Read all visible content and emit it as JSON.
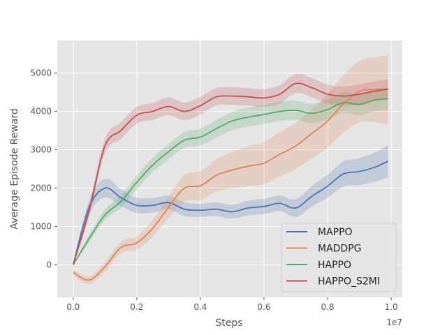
{
  "chart_data": {
    "type": "line",
    "title": "",
    "xlabel": "Steps",
    "ylabel": "Average Episode Reward",
    "x_offset_label": "1e7",
    "xlim": [
      -0.05,
      1.035
    ],
    "ylim": [
      -850,
      5850
    ],
    "x_ticks": [
      0.0,
      0.2,
      0.4,
      0.6,
      0.8,
      1.0
    ],
    "x_tick_labels": [
      "0.0",
      "0.2",
      "0.4",
      "0.6",
      "0.8",
      "1.0"
    ],
    "y_ticks": [
      0,
      1000,
      2000,
      3000,
      4000,
      5000
    ],
    "y_tick_labels": [
      "0",
      "1000",
      "2000",
      "3000",
      "4000",
      "5000"
    ],
    "grid": true,
    "legend_position": "lower-right",
    "x": [
      0.0,
      0.05,
      0.1,
      0.15,
      0.2,
      0.25,
      0.3,
      0.35,
      0.4,
      0.45,
      0.5,
      0.55,
      0.6,
      0.65,
      0.7,
      0.75,
      0.8,
      0.85,
      0.9,
      0.95,
      0.99
    ],
    "series": [
      {
        "name": "MAPPO",
        "color": "#4c72b0",
        "values": [
          0,
          1500,
          2000,
          1750,
          1550,
          1550,
          1620,
          1450,
          1420,
          1450,
          1380,
          1480,
          1520,
          1600,
          1480,
          1780,
          2050,
          2370,
          2430,
          2550,
          2700
        ],
        "band": [
          0,
          180,
          250,
          220,
          200,
          190,
          180,
          180,
          170,
          180,
          180,
          190,
          200,
          200,
          230,
          270,
          300,
          330,
          350,
          380,
          430
        ]
      },
      {
        "name": "MADDPG",
        "color": "#dd8452",
        "values": [
          -200,
          -400,
          -50,
          450,
          570,
          950,
          1500,
          2000,
          2060,
          2330,
          2470,
          2570,
          2650,
          2880,
          3100,
          3420,
          3750,
          4200,
          4520,
          4570,
          4570
        ],
        "band": [
          80,
          100,
          120,
          150,
          180,
          220,
          280,
          350,
          380,
          420,
          470,
          520,
          550,
          580,
          600,
          650,
          700,
          750,
          800,
          850,
          900
        ]
      },
      {
        "name": "HAPPO",
        "color": "#55a868",
        "values": [
          0,
          680,
          1300,
          1650,
          2150,
          2600,
          2950,
          3250,
          3330,
          3550,
          3750,
          3850,
          3920,
          4000,
          4030,
          3950,
          4050,
          4230,
          4180,
          4300,
          4330
        ],
        "band": [
          0,
          100,
          140,
          160,
          180,
          190,
          200,
          210,
          220,
          230,
          240,
          250,
          250,
          250,
          250,
          250,
          260,
          270,
          280,
          290,
          300
        ]
      },
      {
        "name": "HAPPO_S2MI",
        "color": "#c44e52",
        "values": [
          0,
          1400,
          3100,
          3500,
          3900,
          4000,
          4130,
          4000,
          4150,
          4380,
          4400,
          4380,
          4350,
          4450,
          4730,
          4620,
          4450,
          4400,
          4450,
          4530,
          4580
        ],
        "band": [
          0,
          160,
          200,
          220,
          220,
          220,
          230,
          230,
          230,
          230,
          230,
          230,
          230,
          240,
          250,
          250,
          250,
          250,
          260,
          260,
          260
        ]
      }
    ]
  }
}
